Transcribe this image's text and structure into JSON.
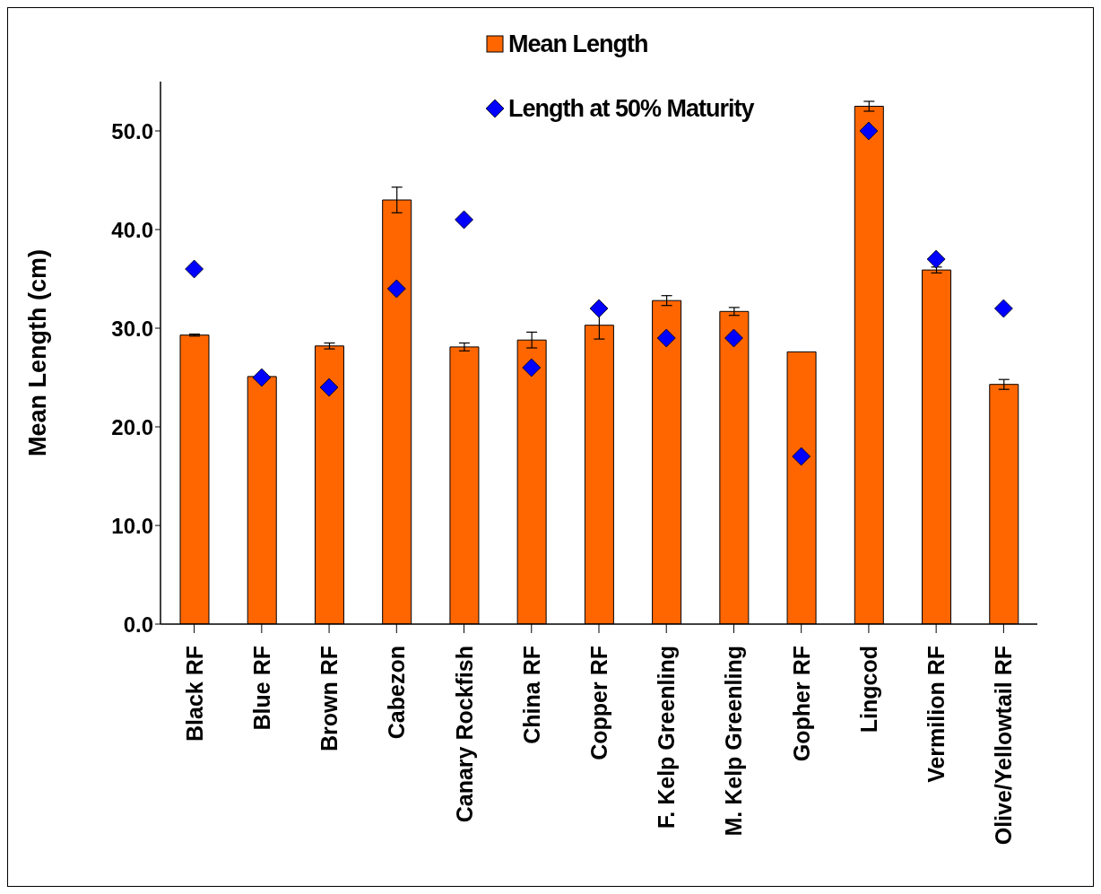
{
  "chart_data": {
    "type": "bar",
    "ylabel": "Mean Length (cm)",
    "categories": [
      "Black RF",
      "Blue RF",
      "Brown RF",
      "Cabezon",
      "Canary Rockfish",
      "China RF",
      "Copper RF",
      "F. Kelp Greenling",
      "M. Kelp Greenling",
      "Gopher RF",
      "Lingcod",
      "Vermilion RF",
      "Olive/Yellowtail RF"
    ],
    "series": [
      {
        "name": "Mean Length",
        "color": "#ff6600",
        "values": [
          29.3,
          25.1,
          28.2,
          43.0,
          28.1,
          28.8,
          30.3,
          32.8,
          31.7,
          27.6,
          52.5,
          35.9,
          24.3
        ],
        "errors": [
          0.1,
          0.2,
          0.3,
          1.3,
          0.4,
          0.8,
          1.4,
          0.5,
          0.4,
          null,
          0.5,
          0.3,
          0.5
        ]
      },
      {
        "name": "Length at 50% Maturity",
        "type": "scatter",
        "marker": "diamond",
        "color": "#0000ff",
        "values": [
          36,
          25,
          24,
          34,
          41,
          26,
          32,
          29,
          29,
          17,
          50,
          37,
          32
        ]
      }
    ],
    "ylim": [
      0,
      55
    ],
    "yticks": [
      {
        "value": 0,
        "label": "0.0"
      },
      {
        "value": 10,
        "label": "10.0"
      },
      {
        "value": 20,
        "label": "20.0"
      },
      {
        "value": 30,
        "label": "30.0"
      },
      {
        "value": 40,
        "label": "40.0"
      },
      {
        "value": 50,
        "label": "50.0"
      }
    ],
    "legend": "top",
    "grid": false
  }
}
